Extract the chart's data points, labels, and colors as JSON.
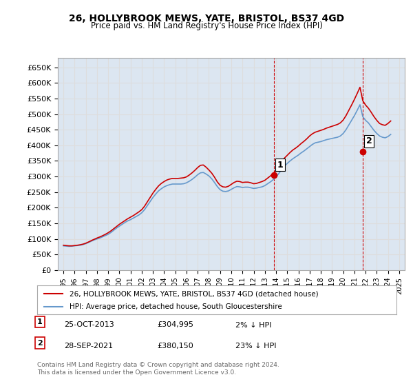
{
  "title": "26, HOLLYBROOK MEWS, YATE, BRISTOL, BS37 4GD",
  "subtitle": "Price paid vs. HM Land Registry's House Price Index (HPI)",
  "ylabel_ticks": [
    "£0",
    "£50K",
    "£100K",
    "£150K",
    "£200K",
    "£250K",
    "£300K",
    "£350K",
    "£400K",
    "£450K",
    "£500K",
    "£550K",
    "£600K",
    "£650K"
  ],
  "ylim": [
    0,
    650000
  ],
  "xlim_years": [
    1995,
    2026
  ],
  "property_color": "#cc0000",
  "hpi_color": "#6699cc",
  "grid_color": "#dddddd",
  "bg_color": "#dce6f1",
  "plot_bg": "#dce6f1",
  "sale1_x": 2013.82,
  "sale1_y": 304995,
  "sale2_x": 2021.75,
  "sale2_y": 380150,
  "legend_property": "26, HOLLYBROOK MEWS, YATE, BRISTOL, BS37 4GD (detached house)",
  "legend_hpi": "HPI: Average price, detached house, South Gloucestershire",
  "table_rows": [
    {
      "num": "1",
      "date": "25-OCT-2013",
      "price": "£304,995",
      "pct": "2% ↓ HPI"
    },
    {
      "num": "2",
      "date": "28-SEP-2021",
      "price": "£380,150",
      "pct": "23% ↓ HPI"
    }
  ],
  "footer": "Contains HM Land Registry data © Crown copyright and database right 2024.\nThis data is licensed under the Open Government Licence v3.0.",
  "hpi_data_x": [
    1995.0,
    1995.25,
    1995.5,
    1995.75,
    1996.0,
    1996.25,
    1996.5,
    1996.75,
    1997.0,
    1997.25,
    1997.5,
    1997.75,
    1998.0,
    1998.25,
    1998.5,
    1998.75,
    1999.0,
    1999.25,
    1999.5,
    1999.75,
    2000.0,
    2000.25,
    2000.5,
    2000.75,
    2001.0,
    2001.25,
    2001.5,
    2001.75,
    2002.0,
    2002.25,
    2002.5,
    2002.75,
    2003.0,
    2003.25,
    2003.5,
    2003.75,
    2004.0,
    2004.25,
    2004.5,
    2004.75,
    2005.0,
    2005.25,
    2005.5,
    2005.75,
    2006.0,
    2006.25,
    2006.5,
    2006.75,
    2007.0,
    2007.25,
    2007.5,
    2007.75,
    2008.0,
    2008.25,
    2008.5,
    2008.75,
    2009.0,
    2009.25,
    2009.5,
    2009.75,
    2010.0,
    2010.25,
    2010.5,
    2010.75,
    2011.0,
    2011.25,
    2011.5,
    2011.75,
    2012.0,
    2012.25,
    2012.5,
    2012.75,
    2013.0,
    2013.25,
    2013.5,
    2013.75,
    2014.0,
    2014.25,
    2014.5,
    2014.75,
    2015.0,
    2015.25,
    2015.5,
    2015.75,
    2016.0,
    2016.25,
    2016.5,
    2016.75,
    2017.0,
    2017.25,
    2017.5,
    2017.75,
    2018.0,
    2018.25,
    2018.5,
    2018.75,
    2019.0,
    2019.25,
    2019.5,
    2019.75,
    2020.0,
    2020.25,
    2020.5,
    2020.75,
    2021.0,
    2021.25,
    2021.5,
    2021.75,
    2022.0,
    2022.25,
    2022.5,
    2022.75,
    2023.0,
    2023.25,
    2023.5,
    2023.75,
    2024.0,
    2024.25
  ],
  "hpi_data_y": [
    78000,
    77000,
    76500,
    77000,
    78000,
    79000,
    80000,
    82000,
    85000,
    89000,
    93000,
    97000,
    100000,
    103000,
    107000,
    111000,
    115000,
    121000,
    128000,
    135000,
    141000,
    147000,
    153000,
    158000,
    162000,
    167000,
    172000,
    177000,
    184000,
    194000,
    207000,
    220000,
    233000,
    244000,
    254000,
    261000,
    267000,
    271000,
    274000,
    276000,
    276000,
    276000,
    276000,
    277000,
    280000,
    285000,
    291000,
    298000,
    306000,
    312000,
    313000,
    308000,
    302000,
    293000,
    281000,
    268000,
    258000,
    253000,
    252000,
    254000,
    259000,
    264000,
    268000,
    267000,
    265000,
    266000,
    266000,
    264000,
    262000,
    263000,
    265000,
    267000,
    271000,
    277000,
    283000,
    290000,
    298000,
    310000,
    322000,
    333000,
    342000,
    350000,
    357000,
    363000,
    369000,
    376000,
    382000,
    389000,
    396000,
    403000,
    408000,
    410000,
    412000,
    415000,
    418000,
    420000,
    422000,
    424000,
    426000,
    430000,
    438000,
    450000,
    465000,
    480000,
    495000,
    512000,
    530000,
    492000,
    480000,
    472000,
    460000,
    448000,
    438000,
    430000,
    426000,
    424000,
    428000,
    435000
  ],
  "prop_data_x": [
    1995.0,
    1995.25,
    1995.5,
    1995.75,
    1996.0,
    1996.25,
    1996.5,
    1996.75,
    1997.0,
    1997.25,
    1997.5,
    1997.75,
    1998.0,
    1998.25,
    1998.5,
    1998.75,
    1999.0,
    1999.25,
    1999.5,
    1999.75,
    2000.0,
    2000.25,
    2000.5,
    2000.75,
    2001.0,
    2001.25,
    2001.5,
    2001.75,
    2002.0,
    2002.25,
    2002.5,
    2002.75,
    2003.0,
    2003.25,
    2003.5,
    2003.75,
    2004.0,
    2004.25,
    2004.5,
    2004.75,
    2005.0,
    2005.25,
    2005.5,
    2005.75,
    2006.0,
    2006.25,
    2006.5,
    2006.75,
    2007.0,
    2007.25,
    2007.5,
    2007.75,
    2008.0,
    2008.25,
    2008.5,
    2008.75,
    2009.0,
    2009.25,
    2009.5,
    2009.75,
    2010.0,
    2010.25,
    2010.5,
    2010.75,
    2011.0,
    2011.25,
    2011.5,
    2011.75,
    2012.0,
    2012.25,
    2012.5,
    2012.75,
    2013.0,
    2013.25,
    2013.5,
    2013.75,
    2014.0,
    2014.25,
    2014.5,
    2014.75,
    2015.0,
    2015.25,
    2015.5,
    2015.75,
    2016.0,
    2016.25,
    2016.5,
    2016.75,
    2017.0,
    2017.25,
    2017.5,
    2017.75,
    2018.0,
    2018.25,
    2018.5,
    2018.75,
    2019.0,
    2019.25,
    2019.5,
    2019.75,
    2020.0,
    2020.25,
    2020.5,
    2020.75,
    2021.0,
    2021.25,
    2021.5,
    2021.75,
    2022.0,
    2022.25,
    2022.5,
    2022.75,
    2023.0,
    2023.25,
    2023.5,
    2023.75,
    2024.0,
    2024.25
  ],
  "prop_data_y": [
    80000,
    79000,
    78000,
    78000,
    79000,
    80000,
    81500,
    83500,
    86500,
    90500,
    95000,
    99000,
    103000,
    106500,
    110500,
    115000,
    120000,
    126000,
    133000,
    140000,
    147000,
    153000,
    159000,
    165000,
    170000,
    175000,
    181000,
    187000,
    194000,
    205000,
    219000,
    233000,
    247000,
    259000,
    270000,
    278000,
    284000,
    289000,
    292000,
    294000,
    294000,
    294000,
    295000,
    296000,
    299000,
    305000,
    312000,
    320000,
    329000,
    336000,
    337000,
    330000,
    321000,
    311000,
    298000,
    283000,
    272000,
    267000,
    266000,
    269000,
    275000,
    281000,
    285000,
    284000,
    281000,
    282000,
    282000,
    280000,
    277000,
    278000,
    281000,
    284000,
    288000,
    295000,
    302000,
    310000,
    319000,
    332000,
    346000,
    359000,
    368000,
    377000,
    385000,
    391000,
    398000,
    406000,
    413000,
    421000,
    430000,
    437000,
    442000,
    445000,
    448000,
    451000,
    455000,
    458000,
    461000,
    464000,
    467000,
    472000,
    481000,
    495000,
    512000,
    529000,
    547000,
    566000,
    586000,
    543000,
    529000,
    519000,
    506000,
    492000,
    480000,
    470000,
    466000,
    464000,
    470000,
    478000
  ]
}
